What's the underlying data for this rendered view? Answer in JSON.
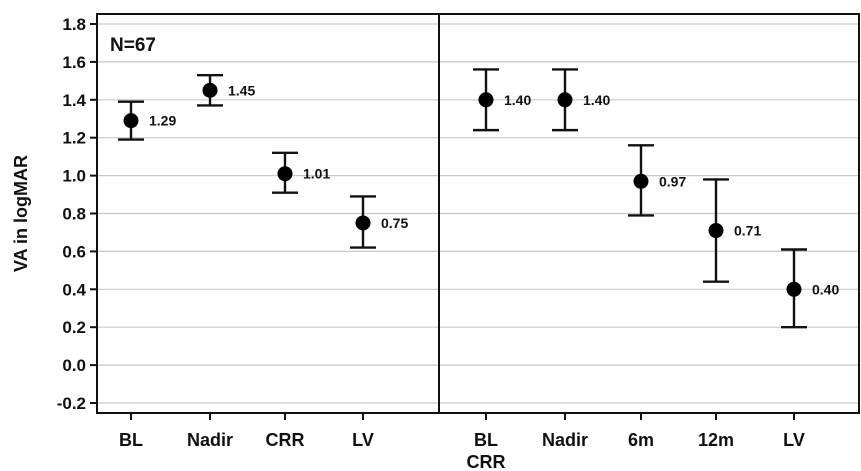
{
  "chart_data": {
    "type": "scatter",
    "ylabel": "VA in logMAR",
    "ylim": [
      -0.3,
      1.85
    ],
    "yticks": [
      "1.8",
      "1.6",
      "1.4",
      "1.2",
      "1.0",
      "0.8",
      "0.6",
      "0.4",
      "0.2",
      "0.0",
      "-0.2"
    ],
    "grid": true,
    "annotation": "N=67",
    "panels": [
      {
        "categories": [
          "BL",
          "Nadir",
          "CRR",
          "LV"
        ],
        "values": [
          1.29,
          1.45,
          1.01,
          0.75
        ],
        "labels": [
          "1.29",
          "1.45",
          "1.01",
          "0.75"
        ],
        "error_low": [
          1.19,
          1.37,
          0.91,
          0.62
        ],
        "error_high": [
          1.39,
          1.53,
          1.12,
          0.89
        ]
      },
      {
        "categories": [
          "BL",
          "Nadir",
          "6m",
          "12m",
          "LV"
        ],
        "subtitle": "CRR",
        "values": [
          1.4,
          1.4,
          0.97,
          0.71,
          0.4
        ],
        "labels": [
          "1.40",
          "1.40",
          "0.97",
          "0.71",
          "0.40"
        ],
        "error_low": [
          1.24,
          1.24,
          0.79,
          0.44,
          0.2
        ],
        "error_high": [
          1.56,
          1.56,
          1.16,
          0.98,
          0.61
        ]
      }
    ]
  }
}
